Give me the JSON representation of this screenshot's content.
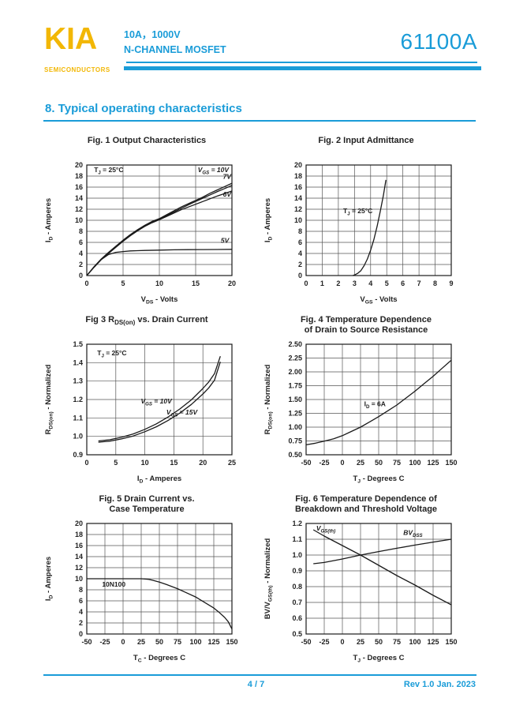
{
  "header": {
    "logo": "KIA",
    "logo_sub": "SEMICONDUCTORS",
    "subtitle_line1": "10A，1000V",
    "subtitle_line2": "N-CHANNEL MOSFET",
    "part_number": "61100A"
  },
  "section_title": "8. Typical operating characteristics",
  "footer": {
    "page": "4 / 7",
    "revision": "Rev 1.0 Jan. 2023"
  },
  "colors": {
    "accent": "#1a9cd8",
    "logo_yellow": "#f2b705",
    "chart_line": "#1a1a1a",
    "grid_line": "#555555"
  },
  "chart_data": [
    {
      "type": "line",
      "title_lines": [
        "Fig. 1  Output Characteristics"
      ],
      "xlabel": "V~DS~ - Volts",
      "ylabel": "I~D~ - Amperes",
      "xlim": [
        0,
        20
      ],
      "ylim": [
        0,
        20
      ],
      "xticks": [
        0,
        5,
        10,
        15,
        20
      ],
      "yticks": [
        0,
        2,
        4,
        6,
        8,
        10,
        12,
        14,
        16,
        18,
        20
      ],
      "ytick_decimals": 0,
      "annotations": [
        {
          "text": "T~J~ = 25°C",
          "x": 1.0,
          "y": 18.7,
          "anchor": "start"
        },
        {
          "text": "V~GS~ = 10V",
          "x": 15.3,
          "y": 18.7,
          "anchor": "start",
          "italic": true
        },
        {
          "text": "7V",
          "x": 19.9,
          "y": 17.5,
          "anchor": "end",
          "italic": true
        },
        {
          "text": "6V",
          "x": 19.9,
          "y": 14.3,
          "anchor": "end",
          "italic": true
        },
        {
          "text": "5V",
          "x": 19.6,
          "y": 5.9,
          "anchor": "end",
          "italic": true
        }
      ],
      "series": [
        {
          "name": "VGS-10V",
          "points": [
            [
              0,
              0
            ],
            [
              1,
              1.6
            ],
            [
              2,
              3.0
            ],
            [
              3,
              4.2
            ],
            [
              4,
              5.3
            ],
            [
              5,
              6.4
            ],
            [
              6,
              7.4
            ],
            [
              7,
              8.3
            ],
            [
              8,
              9.1
            ],
            [
              9,
              9.8
            ],
            [
              10,
              10.3
            ],
            [
              11,
              11.0
            ],
            [
              12,
              11.7
            ],
            [
              13,
              12.4
            ],
            [
              14,
              13.0
            ],
            [
              15,
              13.6
            ],
            [
              16,
              14.2
            ],
            [
              17,
              14.9
            ],
            [
              18,
              15.5
            ],
            [
              19,
              16.1
            ],
            [
              20,
              16.7
            ]
          ]
        },
        {
          "name": "VGS-7V",
          "points": [
            [
              0,
              0
            ],
            [
              1,
              1.55
            ],
            [
              2,
              2.95
            ],
            [
              3,
              4.1
            ],
            [
              4,
              5.2
            ],
            [
              5,
              6.3
            ],
            [
              6,
              7.3
            ],
            [
              7,
              8.2
            ],
            [
              8,
              9.0
            ],
            [
              9,
              9.7
            ],
            [
              10,
              10.2
            ],
            [
              11,
              10.85
            ],
            [
              12,
              11.5
            ],
            [
              13,
              12.15
            ],
            [
              14,
              12.8
            ],
            [
              15,
              13.4
            ],
            [
              16,
              14.0
            ],
            [
              17,
              14.6
            ],
            [
              18,
              15.2
            ],
            [
              19,
              15.75
            ],
            [
              20,
              16.3
            ]
          ]
        },
        {
          "name": "VGS-6V",
          "points": [
            [
              0,
              0
            ],
            [
              1,
              1.5
            ],
            [
              2,
              2.9
            ],
            [
              3,
              4.0
            ],
            [
              4,
              5.1
            ],
            [
              5,
              6.2
            ],
            [
              6,
              7.2
            ],
            [
              7,
              8.1
            ],
            [
              8,
              8.9
            ],
            [
              9,
              9.55
            ],
            [
              10,
              10.1
            ],
            [
              11,
              10.7
            ],
            [
              12,
              11.3
            ],
            [
              13,
              11.9
            ],
            [
              14,
              12.4
            ],
            [
              15,
              12.9
            ],
            [
              16,
              13.4
            ],
            [
              17,
              13.9
            ],
            [
              18,
              14.4
            ],
            [
              19,
              14.85
            ],
            [
              20,
              15.3
            ]
          ]
        },
        {
          "name": "VGS-5V",
          "points": [
            [
              0,
              0
            ],
            [
              1,
              1.5
            ],
            [
              2,
              2.9
            ],
            [
              3,
              3.8
            ],
            [
              4,
              4.2
            ],
            [
              5,
              4.35
            ],
            [
              6,
              4.45
            ],
            [
              7,
              4.5
            ],
            [
              8,
              4.55
            ],
            [
              10,
              4.6
            ],
            [
              12,
              4.65
            ],
            [
              14,
              4.68
            ],
            [
              16,
              4.7
            ],
            [
              18,
              4.72
            ],
            [
              20,
              4.75
            ]
          ]
        }
      ]
    },
    {
      "type": "line",
      "title_lines": [
        "Fig. 2   Input Admittance"
      ],
      "xlabel": "V~GS~ - Volts",
      "ylabel": "I~D~ - Amperes",
      "xlim": [
        0,
        9
      ],
      "ylim": [
        0,
        20
      ],
      "xticks": [
        0,
        1,
        2,
        3,
        4,
        5,
        6,
        7,
        8,
        9
      ],
      "yticks": [
        0,
        2,
        4,
        6,
        8,
        10,
        12,
        14,
        16,
        18,
        20
      ],
      "ytick_decimals": 0,
      "annotations": [
        {
          "text": "T~J~ = 25°C",
          "x": 2.3,
          "y": 11.3,
          "anchor": "start"
        }
      ],
      "series": [
        {
          "name": "input-admittance",
          "points": [
            [
              2.9,
              0
            ],
            [
              3.0,
              0.1
            ],
            [
              3.2,
              0.4
            ],
            [
              3.4,
              0.9
            ],
            [
              3.6,
              1.8
            ],
            [
              3.8,
              3.0
            ],
            [
              4.0,
              4.6
            ],
            [
              4.2,
              6.5
            ],
            [
              4.4,
              8.9
            ],
            [
              4.6,
              11.6
            ],
            [
              4.8,
              14.6
            ],
            [
              4.95,
              17.3
            ]
          ]
        }
      ]
    },
    {
      "type": "line",
      "title_lines": [
        "Fig 3  R~DS(on)~ vs. Drain Current"
      ],
      "xlabel": "I~D~ - Amperes",
      "ylabel": "R~DS(on)~ - Normalized",
      "xlim": [
        0,
        25
      ],
      "ylim": [
        0.9,
        1.5
      ],
      "xticks": [
        0,
        5,
        10,
        15,
        20,
        25
      ],
      "yticks": [
        0.9,
        1.0,
        1.1,
        1.2,
        1.3,
        1.4,
        1.5
      ],
      "ytick_decimals": 1,
      "annotations": [
        {
          "text": "T~J~ = 25°C",
          "x": 1.8,
          "y": 1.44,
          "anchor": "start"
        },
        {
          "text": "V~GS~ = 10V",
          "x": 9.3,
          "y": 1.178,
          "anchor": "start",
          "italic": true
        },
        {
          "text": "V~GS~ = 15V",
          "x": 13.7,
          "y": 1.118,
          "anchor": "start",
          "italic": true
        }
      ],
      "series": [
        {
          "name": "VGS-10V",
          "points": [
            [
              2,
              0.975
            ],
            [
              4,
              0.982
            ],
            [
              6,
              0.995
            ],
            [
              8,
              1.013
            ],
            [
              10,
              1.038
            ],
            [
              12,
              1.068
            ],
            [
              14,
              1.105
            ],
            [
              16,
              1.148
            ],
            [
              18,
              1.198
            ],
            [
              20,
              1.26
            ],
            [
              21,
              1.295
            ],
            [
              22,
              1.34
            ],
            [
              23,
              1.435
            ]
          ]
        },
        {
          "name": "VGS-15V",
          "points": [
            [
              2,
              0.968
            ],
            [
              4,
              0.974
            ],
            [
              6,
              0.986
            ],
            [
              8,
              1.002
            ],
            [
              10,
              1.025
            ],
            [
              12,
              1.052
            ],
            [
              14,
              1.086
            ],
            [
              16,
              1.126
            ],
            [
              18,
              1.173
            ],
            [
              20,
              1.23
            ],
            [
              21,
              1.263
            ],
            [
              22,
              1.305
            ],
            [
              23,
              1.405
            ]
          ]
        }
      ]
    },
    {
      "type": "line",
      "title_lines": [
        "Fig. 4   Temperature Dependence",
        "of Drain to Source Resistance"
      ],
      "xlabel": "T~J~ - Degrees C",
      "ylabel": "R~DS(on)~ - Normalized",
      "xlim": [
        -50,
        150
      ],
      "ylim": [
        0.5,
        2.5
      ],
      "xticks": [
        -50,
        -25,
        0,
        25,
        50,
        75,
        100,
        125,
        150
      ],
      "yticks": [
        0.5,
        0.75,
        1.0,
        1.25,
        1.5,
        1.75,
        2.0,
        2.25,
        2.5
      ],
      "ytick_decimals": 2,
      "annotations": [
        {
          "text": "I~D~ = 6A",
          "x": 30,
          "y": 1.38,
          "anchor": "start"
        }
      ],
      "series": [
        {
          "name": "rdson-vs-temp",
          "points": [
            [
              -50,
              0.68
            ],
            [
              -37,
              0.71
            ],
            [
              -25,
              0.745
            ],
            [
              -12,
              0.79
            ],
            [
              0,
              0.845
            ],
            [
              12,
              0.92
            ],
            [
              25,
              1.0
            ],
            [
              37,
              1.09
            ],
            [
              50,
              1.19
            ],
            [
              62,
              1.29
            ],
            [
              75,
              1.4
            ],
            [
              87,
              1.52
            ],
            [
              100,
              1.65
            ],
            [
              112,
              1.78
            ],
            [
              125,
              1.92
            ],
            [
              137,
              2.06
            ],
            [
              150,
              2.21
            ]
          ]
        }
      ]
    },
    {
      "type": "line",
      "title_lines": [
        "Fig. 5  Drain Current vs.",
        "Case Temperature"
      ],
      "xlabel": "T~C~ - Degrees C",
      "ylabel": "I~D~ - Amperes",
      "xlim": [
        -50,
        150
      ],
      "ylim": [
        0,
        20
      ],
      "xticks": [
        -50,
        -25,
        0,
        25,
        50,
        75,
        100,
        125,
        150
      ],
      "yticks": [
        0,
        2,
        4,
        6,
        8,
        10,
        12,
        14,
        16,
        18,
        20
      ],
      "ytick_decimals": 0,
      "annotations": [
        {
          "text": "10N100",
          "x": -29,
          "y": 8.6,
          "anchor": "start"
        }
      ],
      "series": [
        {
          "name": "id-vs-tc",
          "points": [
            [
              -50,
              10
            ],
            [
              -25,
              10
            ],
            [
              0,
              10
            ],
            [
              25,
              10
            ],
            [
              35,
              9.9
            ],
            [
              40,
              9.75
            ],
            [
              50,
              9.4
            ],
            [
              60,
              8.95
            ],
            [
              75,
              8.2
            ],
            [
              85,
              7.6
            ],
            [
              100,
              6.7
            ],
            [
              110,
              5.9
            ],
            [
              125,
              4.7
            ],
            [
              132,
              3.95
            ],
            [
              140,
              3.0
            ],
            [
              145,
              2.2
            ],
            [
              150,
              0.9
            ]
          ]
        }
      ]
    },
    {
      "type": "line",
      "title_lines": [
        "Fig. 6   Temperature Dependence of",
        "Breakdown and Threshold Voltage"
      ],
      "xlabel": "T~J~ - Degrees C",
      "ylabel": "BV/V~GS(th)~ - Normalized",
      "xlim": [
        -50,
        150
      ],
      "ylim": [
        0.5,
        1.2
      ],
      "xticks": [
        -50,
        -25,
        0,
        25,
        50,
        75,
        100,
        125,
        150
      ],
      "yticks": [
        0.5,
        0.6,
        0.7,
        0.8,
        0.9,
        1.0,
        1.1,
        1.2
      ],
      "ytick_decimals": 1,
      "annotations": [
        {
          "text": "V~GS(th)~",
          "x": -36,
          "y": 1.155,
          "anchor": "start",
          "italic": true
        },
        {
          "text": "BV~DSS~",
          "x": 84,
          "y": 1.128,
          "anchor": "start",
          "italic": true
        }
      ],
      "series": [
        {
          "name": "vgsth",
          "points": [
            [
              -40,
              1.16
            ],
            [
              -25,
              1.12
            ],
            [
              0,
              1.06
            ],
            [
              25,
              1.0
            ],
            [
              50,
              0.935
            ],
            [
              75,
              0.87
            ],
            [
              100,
              0.81
            ],
            [
              125,
              0.745
            ],
            [
              150,
              0.685
            ]
          ]
        },
        {
          "name": "bvdss",
          "points": [
            [
              -40,
              0.945
            ],
            [
              -25,
              0.953
            ],
            [
              0,
              0.975
            ],
            [
              25,
              1.0
            ],
            [
              50,
              1.022
            ],
            [
              75,
              1.043
            ],
            [
              100,
              1.063
            ],
            [
              125,
              1.082
            ],
            [
              150,
              1.1
            ]
          ]
        }
      ]
    }
  ]
}
